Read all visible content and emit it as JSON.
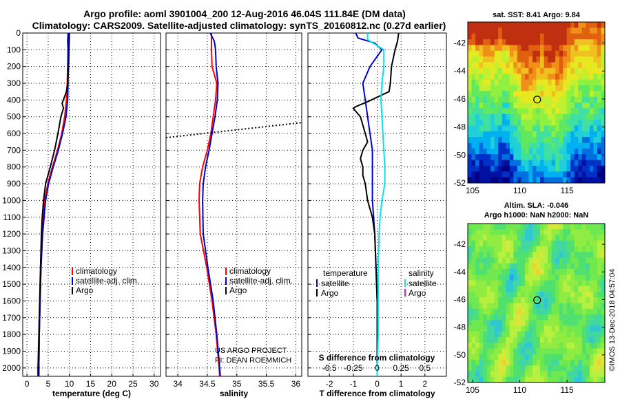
{
  "titles": {
    "line1": "Argo profile: aoml 3901004_200 12-Aug-2016 46.04S 111.84E (DM data)",
    "line2": "Climatology: CARS2009. Satellite-adjusted climatology: synTS_20160812.nc (0.27d earlier)"
  },
  "colors": {
    "climatology": "#ff0000",
    "satellite": "#0000cc",
    "argo": "#000000",
    "salinity": "#00e5ee",
    "salinity_argo": "#ff00ff"
  },
  "credit": {
    "line1": "US ARGO PROJECT",
    "line2": "PI: DEAN ROEMMICH"
  },
  "timestamp": "©IMOS 13-Dec-2018 04:57:04",
  "chart_data": [
    {
      "type": "line",
      "id": "temperature",
      "xlabel": "temperature (deg C)",
      "ylabel": "",
      "xlim": [
        -1,
        31.5
      ],
      "ylim": [
        2050,
        0
      ],
      "xticks": [
        0,
        5,
        10,
        15,
        20,
        25,
        30
      ],
      "xtick_labels": [
        "0",
        "5",
        "10",
        "15",
        "20",
        "25",
        "30"
      ],
      "yticks": [
        0,
        100,
        200,
        300,
        400,
        500,
        600,
        700,
        800,
        900,
        1000,
        1100,
        1200,
        1300,
        1400,
        1500,
        1600,
        1700,
        1800,
        1900,
        2000
      ],
      "ytick_labels": [
        "0",
        "100",
        "200",
        "300",
        "400",
        "500",
        "600",
        "700",
        "800",
        "900",
        "1000",
        "1100",
        "1200",
        "1300",
        "1400",
        "1500",
        "1600",
        "1700",
        "1800",
        "1900",
        "2000"
      ],
      "grid": true,
      "legend": [
        "climatology",
        "satellite-adj. clim.",
        "Argo"
      ],
      "series": [
        {
          "name": "climatology",
          "color": "#ff0000",
          "depth": [
            0,
            50,
            100,
            200,
            300,
            400,
            500,
            600,
            700,
            800,
            900,
            1000,
            1200,
            1400,
            1600,
            1800,
            2000,
            2050
          ],
          "values": [
            9.9,
            9.8,
            9.7,
            9.6,
            9.5,
            9.3,
            8.9,
            8.2,
            7.2,
            6.0,
            4.9,
            4.2,
            3.6,
            3.3,
            3.1,
            2.9,
            2.8,
            2.8
          ]
        },
        {
          "name": "satellite-adj. clim.",
          "color": "#0000cc",
          "depth": [
            0,
            50,
            100,
            200,
            300,
            400,
            500,
            600,
            700,
            800,
            900,
            1000,
            1200,
            1400,
            1600,
            1800,
            2000,
            2050
          ],
          "values": [
            9.7,
            9.6,
            9.7,
            9.7,
            9.7,
            9.6,
            9.2,
            8.4,
            7.4,
            6.2,
            5.1,
            4.4,
            3.7,
            3.3,
            3.1,
            2.9,
            2.8,
            2.8
          ]
        },
        {
          "name": "Argo",
          "color": "#000000",
          "depth": [
            0,
            10,
            100,
            200,
            300,
            350,
            420,
            450,
            500,
            600,
            700,
            800,
            900,
            1000,
            1100,
            1200,
            1400,
            1600,
            1800,
            2000,
            2050
          ],
          "values": [
            10.0,
            10.0,
            9.9,
            9.8,
            9.6,
            9.3,
            8.3,
            8.6,
            8.0,
            7.3,
            6.5,
            5.5,
            4.4,
            3.9,
            3.6,
            3.4,
            3.2,
            3.0,
            2.8,
            2.6,
            2.6
          ]
        }
      ]
    },
    {
      "type": "line",
      "id": "salinity",
      "xlabel": "salinity",
      "ylabel": "",
      "xlim": [
        33.8,
        36.1
      ],
      "ylim": [
        2050,
        0
      ],
      "xticks": [
        34,
        34.5,
        35,
        35.5,
        36
      ],
      "xtick_labels": [
        "34",
        "34.5",
        "35",
        "35.5",
        "36"
      ],
      "grid": true,
      "legend": [
        "climatology",
        "satellite-adj. clim.",
        "Argo"
      ],
      "dotted_line": {
        "x": [
          33.8,
          36.1
        ],
        "depth": [
          625,
          535
        ]
      },
      "series": [
        {
          "name": "climatology",
          "color": "#ff0000",
          "depth": [
            0,
            100,
            200,
            300,
            400,
            500,
            600,
            700,
            800,
            900,
            1000,
            1200,
            1400,
            1600,
            1800,
            2000,
            2050
          ],
          "values": [
            34.57,
            34.57,
            34.58,
            34.66,
            34.64,
            34.6,
            34.56,
            34.5,
            34.42,
            34.37,
            34.36,
            34.38,
            34.49,
            34.58,
            34.65,
            34.7,
            34.71
          ]
        },
        {
          "name": "satellite-adj. clim.",
          "color": "#0000cc",
          "depth": [
            0,
            50,
            100,
            200,
            300,
            400,
            500,
            600,
            700,
            800,
            900,
            1000,
            1200,
            1400,
            1600,
            1800,
            2000,
            2050
          ],
          "values": [
            34.55,
            34.62,
            34.64,
            34.65,
            34.68,
            34.67,
            34.63,
            34.58,
            34.53,
            34.47,
            34.43,
            34.42,
            34.43,
            34.51,
            34.6,
            34.66,
            34.71,
            34.72
          ]
        },
        {
          "name": "Argo",
          "color": "#000000",
          "depth": [],
          "values": []
        }
      ]
    },
    {
      "type": "line",
      "id": "difference",
      "xlabel": "T difference from climatology",
      "x2label": "S difference from climatology",
      "ylabel": "",
      "xlim": [
        -2.9,
        2.9
      ],
      "x2lim": [
        -0.725,
        0.725
      ],
      "ylim": [
        2050,
        0
      ],
      "xticks": [
        -2,
        -1,
        0,
        1,
        2
      ],
      "xtick_labels": [
        "-2",
        "-1",
        "0",
        "1",
        "2"
      ],
      "x2ticks": [
        -0.5,
        -0.25,
        0,
        0.25,
        0.5
      ],
      "x2tick_labels": [
        "-0.5",
        "-0.25",
        "0",
        "0.25",
        "0.5"
      ],
      "grid": true,
      "legend": {
        "temperature_header": "temperature",
        "salinity_header": "salinity",
        "temperature": [
          "satellite",
          "Argo"
        ],
        "salinity": [
          "satellite",
          "Argo"
        ]
      },
      "series": [
        {
          "name": "temperature satellite",
          "axis": "T",
          "color": "#0000cc",
          "depth": [
            0,
            30,
            60,
            100,
            200,
            300,
            400,
            500,
            600,
            700,
            800,
            900,
            1000,
            1200,
            1400,
            1600,
            1800,
            2000,
            2050
          ],
          "values": [
            -0.9,
            -0.8,
            -0.1,
            0.2,
            -0.3,
            -0.6,
            -0.5,
            -0.4,
            -0.3,
            -0.2,
            -0.2,
            -0.2,
            -0.2,
            -0.1,
            -0.05,
            0,
            0,
            0,
            0
          ]
        },
        {
          "name": "temperature Argo",
          "axis": "T",
          "color": "#000000",
          "depth": [
            0,
            50,
            100,
            200,
            300,
            350,
            410,
            440,
            450,
            500,
            550,
            600,
            650,
            700,
            750,
            800,
            850,
            900,
            1000,
            1100,
            1200,
            1400,
            1600,
            1800,
            2000,
            2050
          ],
          "values": [
            0.9,
            0.85,
            0.75,
            0.6,
            0.55,
            0.5,
            -0.4,
            -0.9,
            -1.0,
            -0.7,
            -0.6,
            -0.5,
            -0.4,
            -0.6,
            -0.7,
            -0.6,
            -0.6,
            -0.5,
            -0.4,
            -0.2,
            -0.1,
            -0.05,
            0,
            0,
            0,
            0
          ]
        },
        {
          "name": "salinity satellite",
          "axis": "S",
          "color": "#00e5ee",
          "depth": [
            0,
            40,
            100,
            200,
            300,
            400,
            500,
            600,
            700,
            800,
            900,
            1000,
            1100,
            1200,
            1400,
            1600,
            1800,
            2000,
            2050
          ],
          "values": [
            -0.1,
            -0.1,
            0.07,
            0.07,
            0.05,
            0.04,
            0.05,
            0.06,
            0.07,
            0.08,
            0.08,
            0.05,
            0.03,
            0.02,
            0.01,
            0.01,
            0.01,
            0.0,
            0.0
          ]
        },
        {
          "name": "salinity Argo",
          "axis": "S",
          "color": "#ff00ff",
          "depth": [],
          "values": []
        }
      ]
    },
    {
      "type": "heatmap",
      "id": "sst_map",
      "title": "sat. SST: 8.41 Argo: 9.84",
      "xlim": [
        104.5,
        119
      ],
      "ylim": [
        -52,
        -40.5
      ],
      "xticks": [
        105,
        110,
        115
      ],
      "xtick_labels": [
        "105",
        "110",
        "115"
      ],
      "yticks": [
        -42,
        -44,
        -46,
        -48,
        -50,
        -52
      ],
      "ytick_labels": [
        "-42",
        "-44",
        "-46",
        "-48",
        "-50",
        "-52"
      ],
      "marker": {
        "lon": 111.84,
        "lat": -46.04
      }
    },
    {
      "type": "heatmap",
      "id": "sla_map",
      "title": "Altim. SLA: -0.046",
      "subtitle": "Argo h1000: NaN h2000: NaN",
      "xlim": [
        104.5,
        119
      ],
      "ylim": [
        -52,
        -40.5
      ],
      "xticks": [
        105,
        110,
        115
      ],
      "xtick_labels": [
        "105",
        "110",
        "115"
      ],
      "yticks": [
        -42,
        -44,
        -46,
        -48,
        -50,
        -52
      ],
      "ytick_labels": [
        "-42",
        "-44",
        "-46",
        "-48",
        "-50",
        "-52"
      ],
      "marker": {
        "lon": 111.84,
        "lat": -46.04
      }
    }
  ]
}
